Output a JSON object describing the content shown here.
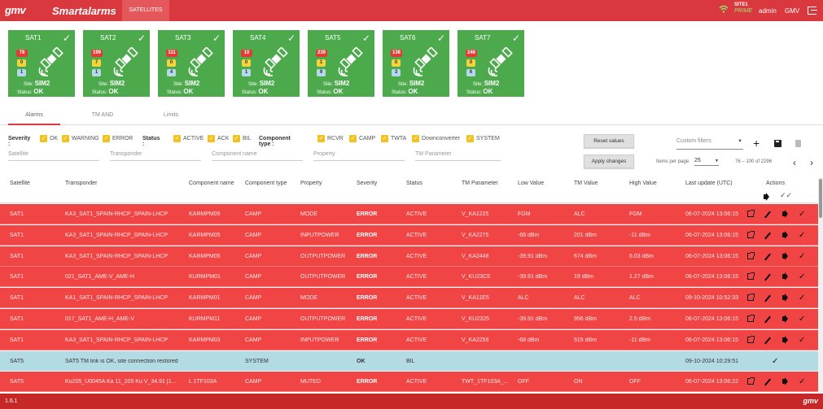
{
  "app": {
    "logo": "gmv",
    "title": "Smartalarms",
    "nav_tab": "SATELLITES",
    "site": "SITE1",
    "site_state": "PRIME",
    "user": "admin",
    "org": "GMV"
  },
  "satellites": [
    {
      "name": "SAT1",
      "errors": "78",
      "warnings": "0",
      "info": "1",
      "site_label": "Site",
      "site": "SIM2",
      "status_label": "Status",
      "status": "OK"
    },
    {
      "name": "SAT2",
      "errors": "199",
      "warnings": "7",
      "info": "1",
      "site_label": "Site",
      "site": "SIM2",
      "status_label": "Status",
      "status": "OK"
    },
    {
      "name": "SAT3",
      "errors": "111",
      "warnings": "0",
      "info": "4",
      "site_label": "Site",
      "site": "SIM2",
      "status_label": "Status",
      "status": "OK"
    },
    {
      "name": "SAT4",
      "errors": "10",
      "warnings": "0",
      "info": "1",
      "site_label": "Site",
      "site": "SIM2",
      "status_label": "Status",
      "status": "OK"
    },
    {
      "name": "SAT5",
      "errors": "239",
      "warnings": "1",
      "info": "9",
      "site_label": "Site",
      "site": "SIM2",
      "status_label": "Status",
      "status": "OK"
    },
    {
      "name": "SAT6",
      "errors": "138",
      "warnings": "0",
      "info": "3",
      "site_label": "Site",
      "site": "SIM2",
      "status_label": "Status",
      "status": "OK"
    },
    {
      "name": "SAT7",
      "errors": "246",
      "warnings": "0",
      "info": "6",
      "site_label": "Site",
      "site": "SIM2",
      "status_label": "Status",
      "status": "OK"
    }
  ],
  "tabs": [
    "Alarms",
    "TM AND",
    "Limits"
  ],
  "filters": {
    "severity_label": "Severity :",
    "severity": [
      "OK",
      "WARNING",
      "ERROR"
    ],
    "status_label": "Status :",
    "status": [
      "ACTIVE",
      "ACK",
      "BIL"
    ],
    "component_label": "Component type :",
    "component": [
      "RCVR",
      "CAMP",
      "TWTA",
      "Downconverter",
      "SYSTEM"
    ],
    "fields": [
      "Satellite",
      "Transponder",
      "Component name",
      "Property",
      "TM Parameter"
    ],
    "reset_label": "Reset values",
    "apply_label": "Apply changes",
    "custom_filters_placeholder": "Custom filters",
    "items_per_page_label": "Items per page:",
    "items_per_page": "25",
    "range": "76 – 100 of 2296"
  },
  "table": {
    "headers": [
      "Satellite",
      "Transponder",
      "Component name",
      "Component type",
      "Property",
      "Severity",
      "Status",
      "TM Parameter",
      "Low Value",
      "TM Value",
      "High Value",
      "Last update (UTC)",
      "Actions"
    ],
    "rows": [
      {
        "kind": "err",
        "cells": [
          "SAT1",
          "KA3_SAT1_SPAIN-RHCP_SPAIN-LHCP",
          "KARMPM05",
          "CAMP",
          "MODE",
          "ERROR",
          "ACTIVE",
          "V_KA1225",
          "FGM",
          "ALC",
          "FGM",
          "06-07-2024 13:06:15"
        ]
      },
      {
        "kind": "err",
        "cells": [
          "SAT1",
          "KA3_SAT1_SPAIN-RHCP_SPAIN-LHCP",
          "KARMPM05",
          "CAMP",
          "INPUTPOWER",
          "ERROR",
          "ACTIVE",
          "V_KA2275",
          "-68 dBm",
          "201 dBm",
          "-11 dBm",
          "06-07-2024 13:06:15"
        ]
      },
      {
        "kind": "err",
        "cells": [
          "SAT1",
          "KA3_SAT1_SPAIN-RHCP_SPAIN-LHCP",
          "KARMPM05",
          "CAMP",
          "OUTPUTPOWER",
          "ERROR",
          "ACTIVE",
          "V_KA2448",
          "-39.91 dBm",
          "674 dBm",
          "6.03 dBm",
          "06-07-2024 13:06:15"
        ]
      },
      {
        "kind": "err",
        "cells": [
          "SAT1",
          "021_SAT1_AME-V_AME-H",
          "KURMPM01",
          "CAMP",
          "OUTPUTPOWER",
          "ERROR",
          "ACTIVE",
          "V_KU23C5",
          "-39.91 dBm",
          "19 dBm",
          "1.27 dBm",
          "06-07-2024 13:06:15"
        ]
      },
      {
        "kind": "err",
        "cells": [
          "SAT1",
          "KA1_SAT1_SPAIN-RHCP_SPAIN-LHCP",
          "KARMPM01",
          "CAMP",
          "MODE",
          "ERROR",
          "ACTIVE",
          "V_KA11E5",
          "ALC",
          "ALC",
          "ALC",
          "09-10-2024 10:52:33"
        ]
      },
      {
        "kind": "err",
        "cells": [
          "SAT1",
          "017_SAT1_AME-H_AME-V",
          "KURMPM11",
          "CAMP",
          "OUTPUTPOWER",
          "ERROR",
          "ACTIVE",
          "V_KU2325",
          "-39.91 dBm",
          "956 dBm",
          "2.5 dBm",
          "06-07-2024 13:06:15"
        ]
      },
      {
        "kind": "err",
        "cells": [
          "SAT1",
          "KA3_SAT1_SPAIN-RHCP_SPAIN-LHCP",
          "KARMPM03",
          "CAMP",
          "INPUTPOWER",
          "ERROR",
          "ACTIVE",
          "V_KA2259",
          "-68 dBm",
          "515 dBm",
          "-11 dBm",
          "06-07-2024 13:06:15"
        ]
      },
      {
        "kind": "ok",
        "cells": [
          "SAT5",
          "SAT5 TM link is OK, site connection restored",
          "",
          "SYSTEM",
          "",
          "OK",
          "BIL",
          "",
          "",
          "",
          "",
          "09-10-2024 10:29:51"
        ]
      },
      {
        "kind": "err",
        "cells": [
          "SAT5",
          "Ku205_U0045A Ka 11_205 Ku V_34.91 [1...",
          "L 1TF103A",
          "CAMP",
          "MUTED",
          "ERROR",
          "ACTIVE",
          "TWT_1TF103A_...",
          "OFF",
          "ON",
          "OFF",
          "06-07-2024 13:06:22"
        ]
      }
    ]
  },
  "footer": {
    "version": "1.6.1",
    "logo": "gmv"
  },
  "colors": {
    "brand_red": "#d9393e",
    "ok_green": "#4caa4c",
    "error_row": "#f14545",
    "ok_row": "#b3dbe3",
    "checkbox": "#f4c21f"
  }
}
